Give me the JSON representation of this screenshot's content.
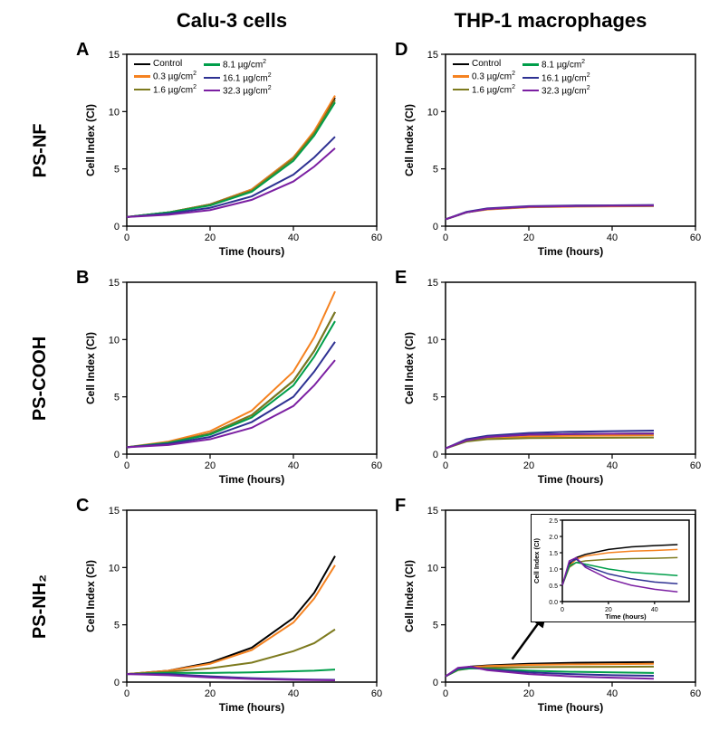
{
  "colors": {
    "control": "#000000",
    "c03": "#f58220",
    "c16": "#7d7a1e",
    "c81": "#009e4a",
    "c161": "#2e3192",
    "c323": "#7b1fa2"
  },
  "axis": {
    "xlabel": "Time (hours)",
    "ylabel": "Cell Index (CI)",
    "xlim": [
      0,
      60
    ],
    "xticks": [
      0,
      20,
      40,
      60
    ],
    "ylim": [
      0,
      15
    ],
    "yticks": [
      0,
      5,
      10,
      15
    ]
  },
  "col_headers": {
    "left": "Calu-3 cells",
    "right": "THP-1 macrophages"
  },
  "row_labels": {
    "r1": "PS-NF",
    "r2": "PS-COOH",
    "r3": "PS-NH₂"
  },
  "legend": {
    "items_left": [
      {
        "key": "control",
        "label": "Control"
      },
      {
        "key": "c03",
        "label": "0.3 µg/cm²"
      },
      {
        "key": "c16",
        "label": "1.6 µg/cm²"
      }
    ],
    "items_right": [
      {
        "key": "c81",
        "label": "8.1 µg/cm²"
      },
      {
        "key": "c161",
        "label": "16.1 µg/cm²"
      },
      {
        "key": "c323",
        "label": "32.3 µg/cm²"
      }
    ]
  },
  "panels": {
    "A": {
      "letter": "A",
      "show_legend": true,
      "series": {
        "control": [
          [
            0,
            0.8
          ],
          [
            10,
            1.2
          ],
          [
            20,
            1.9
          ],
          [
            30,
            3.2
          ],
          [
            40,
            6.0
          ],
          [
            45,
            8.2
          ],
          [
            50,
            11.2
          ]
        ],
        "c03": [
          [
            0,
            0.8
          ],
          [
            10,
            1.2
          ],
          [
            20,
            1.9
          ],
          [
            30,
            3.2
          ],
          [
            40,
            6.0
          ],
          [
            45,
            8.3
          ],
          [
            50,
            11.4
          ]
        ],
        "c16": [
          [
            0,
            0.8
          ],
          [
            10,
            1.2
          ],
          [
            20,
            1.9
          ],
          [
            30,
            3.1
          ],
          [
            40,
            5.9
          ],
          [
            45,
            8.1
          ],
          [
            50,
            11.0
          ]
        ],
        "c81": [
          [
            0,
            0.8
          ],
          [
            10,
            1.2
          ],
          [
            20,
            1.8
          ],
          [
            30,
            3.0
          ],
          [
            40,
            5.7
          ],
          [
            45,
            7.9
          ],
          [
            50,
            10.8
          ]
        ],
        "c161": [
          [
            0,
            0.8
          ],
          [
            10,
            1.1
          ],
          [
            20,
            1.6
          ],
          [
            30,
            2.6
          ],
          [
            40,
            4.5
          ],
          [
            45,
            6.0
          ],
          [
            50,
            7.8
          ]
        ],
        "c323": [
          [
            0,
            0.8
          ],
          [
            10,
            1.0
          ],
          [
            20,
            1.4
          ],
          [
            30,
            2.3
          ],
          [
            40,
            3.9
          ],
          [
            45,
            5.2
          ],
          [
            50,
            6.8
          ]
        ]
      }
    },
    "B": {
      "letter": "B",
      "show_legend": false,
      "series": {
        "control": [
          [
            0,
            0.6
          ],
          [
            10,
            1.0
          ],
          [
            20,
            1.8
          ],
          [
            30,
            3.4
          ],
          [
            40,
            6.4
          ],
          [
            45,
            9.0
          ],
          [
            50,
            12.4
          ]
        ],
        "c03": [
          [
            0,
            0.6
          ],
          [
            10,
            1.1
          ],
          [
            20,
            2.0
          ],
          [
            30,
            3.8
          ],
          [
            40,
            7.2
          ],
          [
            45,
            10.2
          ],
          [
            50,
            14.2
          ]
        ],
        "c16": [
          [
            0,
            0.6
          ],
          [
            10,
            1.0
          ],
          [
            20,
            1.8
          ],
          [
            30,
            3.4
          ],
          [
            40,
            6.4
          ],
          [
            45,
            9.0
          ],
          [
            50,
            12.4
          ]
        ],
        "c81": [
          [
            0,
            0.6
          ],
          [
            10,
            1.0
          ],
          [
            20,
            1.7
          ],
          [
            30,
            3.2
          ],
          [
            40,
            6.0
          ],
          [
            45,
            8.5
          ],
          [
            50,
            11.6
          ]
        ],
        "c161": [
          [
            0,
            0.6
          ],
          [
            10,
            0.9
          ],
          [
            20,
            1.5
          ],
          [
            30,
            2.8
          ],
          [
            40,
            5.0
          ],
          [
            45,
            7.2
          ],
          [
            50,
            9.8
          ]
        ],
        "c323": [
          [
            0,
            0.6
          ],
          [
            10,
            0.8
          ],
          [
            20,
            1.3
          ],
          [
            30,
            2.3
          ],
          [
            40,
            4.2
          ],
          [
            45,
            6.0
          ],
          [
            50,
            8.2
          ]
        ]
      }
    },
    "C": {
      "letter": "C",
      "show_legend": false,
      "series": {
        "control": [
          [
            0,
            0.7
          ],
          [
            10,
            1.0
          ],
          [
            20,
            1.7
          ],
          [
            30,
            3.0
          ],
          [
            40,
            5.6
          ],
          [
            45,
            7.8
          ],
          [
            50,
            11.0
          ]
        ],
        "c03": [
          [
            0,
            0.7
          ],
          [
            10,
            1.0
          ],
          [
            20,
            1.6
          ],
          [
            30,
            2.8
          ],
          [
            40,
            5.2
          ],
          [
            45,
            7.3
          ],
          [
            50,
            10.2
          ]
        ],
        "c16": [
          [
            0,
            0.7
          ],
          [
            10,
            0.9
          ],
          [
            20,
            1.2
          ],
          [
            30,
            1.7
          ],
          [
            40,
            2.7
          ],
          [
            45,
            3.4
          ],
          [
            50,
            4.6
          ]
        ],
        "c81": [
          [
            0,
            0.7
          ],
          [
            10,
            0.8
          ],
          [
            20,
            0.8
          ],
          [
            30,
            0.85
          ],
          [
            40,
            0.95
          ],
          [
            45,
            1.0
          ],
          [
            50,
            1.1
          ]
        ],
        "c161": [
          [
            0,
            0.7
          ],
          [
            10,
            0.7
          ],
          [
            20,
            0.5
          ],
          [
            30,
            0.35
          ],
          [
            40,
            0.25
          ],
          [
            45,
            0.22
          ],
          [
            50,
            0.2
          ]
        ],
        "c323": [
          [
            0,
            0.7
          ],
          [
            10,
            0.6
          ],
          [
            20,
            0.4
          ],
          [
            30,
            0.28
          ],
          [
            40,
            0.2
          ],
          [
            45,
            0.18
          ],
          [
            50,
            0.16
          ]
        ]
      }
    },
    "D": {
      "letter": "D",
      "show_legend": true,
      "series": {
        "control": [
          [
            0,
            0.6
          ],
          [
            5,
            1.2
          ],
          [
            10,
            1.5
          ],
          [
            20,
            1.7
          ],
          [
            30,
            1.75
          ],
          [
            40,
            1.78
          ],
          [
            50,
            1.8
          ]
        ],
        "c03": [
          [
            0,
            0.6
          ],
          [
            5,
            1.2
          ],
          [
            10,
            1.45
          ],
          [
            20,
            1.65
          ],
          [
            30,
            1.7
          ],
          [
            40,
            1.73
          ],
          [
            50,
            1.75
          ]
        ],
        "c16": [
          [
            0,
            0.6
          ],
          [
            5,
            1.2
          ],
          [
            10,
            1.5
          ],
          [
            20,
            1.7
          ],
          [
            30,
            1.75
          ],
          [
            40,
            1.78
          ],
          [
            50,
            1.8
          ]
        ],
        "c81": [
          [
            0,
            0.6
          ],
          [
            5,
            1.2
          ],
          [
            10,
            1.5
          ],
          [
            20,
            1.7
          ],
          [
            30,
            1.75
          ],
          [
            40,
            1.78
          ],
          [
            50,
            1.8
          ]
        ],
        "c161": [
          [
            0,
            0.6
          ],
          [
            5,
            1.25
          ],
          [
            10,
            1.55
          ],
          [
            20,
            1.75
          ],
          [
            30,
            1.8
          ],
          [
            40,
            1.82
          ],
          [
            50,
            1.85
          ]
        ],
        "c323": [
          [
            0,
            0.6
          ],
          [
            5,
            1.2
          ],
          [
            10,
            1.5
          ],
          [
            20,
            1.7
          ],
          [
            30,
            1.75
          ],
          [
            40,
            1.78
          ],
          [
            50,
            1.8
          ]
        ]
      }
    },
    "E": {
      "letter": "E",
      "show_legend": false,
      "series": {
        "control": [
          [
            0,
            0.5
          ],
          [
            5,
            1.2
          ],
          [
            10,
            1.5
          ],
          [
            20,
            1.7
          ],
          [
            30,
            1.75
          ],
          [
            40,
            1.78
          ],
          [
            50,
            1.8
          ]
        ],
        "c03": [
          [
            0,
            0.5
          ],
          [
            5,
            1.15
          ],
          [
            10,
            1.4
          ],
          [
            20,
            1.55
          ],
          [
            30,
            1.6
          ],
          [
            40,
            1.62
          ],
          [
            50,
            1.65
          ]
        ],
        "c16": [
          [
            0,
            0.5
          ],
          [
            5,
            1.1
          ],
          [
            10,
            1.3
          ],
          [
            20,
            1.4
          ],
          [
            30,
            1.42
          ],
          [
            40,
            1.43
          ],
          [
            50,
            1.45
          ]
        ],
        "c81": [
          [
            0,
            0.5
          ],
          [
            5,
            1.2
          ],
          [
            10,
            1.5
          ],
          [
            20,
            1.7
          ],
          [
            30,
            1.75
          ],
          [
            40,
            1.78
          ],
          [
            50,
            1.8
          ]
        ],
        "c161": [
          [
            0,
            0.5
          ],
          [
            5,
            1.3
          ],
          [
            10,
            1.6
          ],
          [
            20,
            1.85
          ],
          [
            30,
            1.95
          ],
          [
            40,
            2.0
          ],
          [
            50,
            2.05
          ]
        ],
        "c323": [
          [
            0,
            0.5
          ],
          [
            5,
            1.2
          ],
          [
            10,
            1.5
          ],
          [
            20,
            1.7
          ],
          [
            30,
            1.75
          ],
          [
            40,
            1.78
          ],
          [
            50,
            1.8
          ]
        ]
      }
    },
    "F": {
      "letter": "F",
      "show_legend": false,
      "series": {
        "control": [
          [
            0,
            0.5
          ],
          [
            3,
            1.15
          ],
          [
            6,
            1.35
          ],
          [
            10,
            1.45
          ],
          [
            20,
            1.6
          ],
          [
            30,
            1.68
          ],
          [
            40,
            1.72
          ],
          [
            50,
            1.75
          ]
        ],
        "c03": [
          [
            0,
            0.5
          ],
          [
            3,
            1.1
          ],
          [
            6,
            1.3
          ],
          [
            10,
            1.4
          ],
          [
            20,
            1.5
          ],
          [
            30,
            1.55
          ],
          [
            40,
            1.57
          ],
          [
            50,
            1.6
          ]
        ],
        "c16": [
          [
            0,
            0.5
          ],
          [
            3,
            1.05
          ],
          [
            6,
            1.2
          ],
          [
            10,
            1.25
          ],
          [
            20,
            1.3
          ],
          [
            30,
            1.32
          ],
          [
            40,
            1.33
          ],
          [
            50,
            1.35
          ]
        ],
        "c81": [
          [
            0,
            0.5
          ],
          [
            3,
            1.1
          ],
          [
            6,
            1.2
          ],
          [
            10,
            1.15
          ],
          [
            20,
            1.0
          ],
          [
            30,
            0.9
          ],
          [
            40,
            0.85
          ],
          [
            50,
            0.8
          ]
        ],
        "c161": [
          [
            0,
            0.5
          ],
          [
            3,
            1.2
          ],
          [
            6,
            1.3
          ],
          [
            10,
            1.1
          ],
          [
            20,
            0.85
          ],
          [
            30,
            0.7
          ],
          [
            40,
            0.6
          ],
          [
            50,
            0.55
          ]
        ],
        "c323": [
          [
            0,
            0.5
          ],
          [
            3,
            1.25
          ],
          [
            6,
            1.35
          ],
          [
            10,
            1.05
          ],
          [
            20,
            0.7
          ],
          [
            30,
            0.5
          ],
          [
            40,
            0.38
          ],
          [
            50,
            0.3
          ]
        ]
      }
    }
  },
  "inset_F": {
    "axis": {
      "xlim": [
        0,
        55
      ],
      "ylim": [
        0,
        2.5
      ],
      "xticks": [
        0,
        20,
        40
      ],
      "yticks": [
        0,
        0.5,
        1.0,
        1.5,
        2.0,
        2.5
      ],
      "xlabel": "Time (hours)",
      "ylabel": "Cell Index (CI)"
    }
  }
}
